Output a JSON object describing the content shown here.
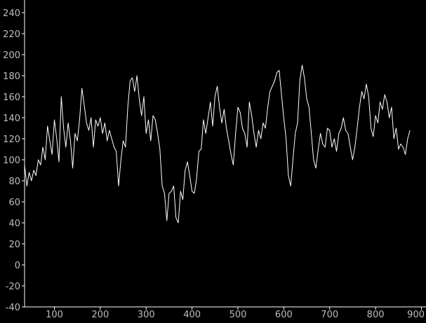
{
  "chart_data": {
    "type": "line",
    "title": "",
    "xlabel": "",
    "ylabel": "",
    "xlim": [
      35,
      910
    ],
    "ylim": [
      -40,
      250
    ],
    "grid": false,
    "x_ticks": [
      100,
      200,
      300,
      400,
      500,
      600,
      700,
      800,
      900
    ],
    "y_ticks": [
      -40,
      -20,
      0,
      20,
      40,
      60,
      80,
      100,
      120,
      140,
      160,
      180,
      200,
      220,
      240
    ],
    "colors": {
      "background": "#000000",
      "line": "#ffffff",
      "axis": "#ffffff",
      "tick_label": "#bdbdbd"
    },
    "series": [
      {
        "x": [
          35,
          40,
          45,
          50,
          55,
          60,
          65,
          70,
          75,
          80,
          85,
          90,
          95,
          100,
          105,
          110,
          115,
          120,
          125,
          130,
          135,
          140,
          145,
          150,
          155,
          160,
          165,
          170,
          175,
          180,
          185,
          190,
          195,
          200,
          205,
          210,
          215,
          220,
          225,
          230,
          235,
          240,
          245,
          250,
          255,
          260,
          265,
          270,
          275,
          280,
          285,
          290,
          295,
          300,
          305,
          310,
          315,
          320,
          325,
          330,
          335,
          340,
          345,
          350,
          355,
          360,
          365,
          370,
          375,
          380,
          385,
          390,
          395,
          400,
          405,
          410,
          415,
          420,
          425,
          430,
          435,
          440,
          445,
          450,
          455,
          460,
          465,
          470,
          475,
          480,
          485,
          490,
          495,
          500,
          505,
          510,
          515,
          520,
          525,
          530,
          535,
          540,
          545,
          550,
          555,
          560,
          565,
          570,
          575,
          580,
          585,
          590,
          595,
          600,
          605,
          610,
          615,
          620,
          625,
          630,
          635,
          640,
          645,
          650,
          655,
          660,
          665,
          670,
          675,
          680,
          685,
          690,
          695,
          700,
          705,
          710,
          715,
          720,
          725,
          730,
          735,
          740,
          745,
          750,
          755,
          760,
          765,
          770,
          775,
          780,
          785,
          790,
          795,
          800,
          805,
          810,
          815,
          820,
          825,
          830,
          835,
          840,
          845,
          850,
          855,
          860,
          865,
          870,
          875
        ],
        "y": [
          95,
          75,
          88,
          80,
          90,
          85,
          100,
          95,
          112,
          100,
          132,
          118,
          105,
          138,
          120,
          98,
          160,
          130,
          112,
          135,
          118,
          92,
          125,
          118,
          138,
          168,
          152,
          135,
          128,
          140,
          112,
          138,
          132,
          140,
          125,
          135,
          118,
          128,
          120,
          112,
          108,
          75,
          100,
          118,
          112,
          150,
          175,
          178,
          165,
          180,
          158,
          142,
          160,
          125,
          138,
          118,
          142,
          138,
          125,
          110,
          75,
          68,
          42,
          68,
          70,
          75,
          45,
          40,
          70,
          62,
          90,
          98,
          85,
          70,
          68,
          82,
          108,
          110,
          138,
          125,
          140,
          155,
          132,
          160,
          170,
          150,
          135,
          148,
          130,
          118,
          105,
          95,
          125,
          150,
          145,
          130,
          125,
          112,
          155,
          142,
          125,
          112,
          128,
          120,
          135,
          130,
          150,
          165,
          170,
          175,
          183,
          185,
          162,
          140,
          120,
          85,
          75,
          100,
          125,
          135,
          175,
          190,
          178,
          158,
          150,
          125,
          100,
          92,
          110,
          125,
          115,
          112,
          130,
          128,
          112,
          120,
          108,
          125,
          130,
          140,
          128,
          125,
          112,
          100,
          112,
          130,
          150,
          165,
          158,
          172,
          160,
          130,
          122,
          142,
          135,
          155,
          148,
          162,
          155,
          140,
          150,
          120,
          130,
          110,
          115,
          112,
          105,
          120,
          128
        ]
      }
    ]
  }
}
